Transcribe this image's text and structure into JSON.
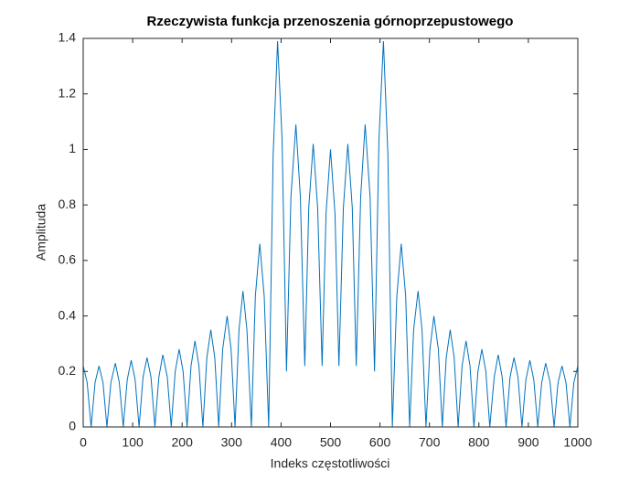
{
  "chart_data": {
    "type": "line",
    "title": "Rzeczywista funkcja przenoszenia górnoprzepustowego",
    "x_label": "Indeks częstotliwości",
    "y_label": "Amplituda",
    "x": [
      0,
      8,
      16,
      24,
      32,
      40,
      48,
      56,
      65,
      73,
      81,
      89,
      97,
      105,
      113,
      121,
      129,
      137,
      145,
      153,
      161,
      170,
      178,
      186,
      194,
      202,
      210,
      218,
      226,
      234,
      242,
      250,
      258,
      266,
      274,
      282,
      291,
      299,
      307,
      315,
      323,
      331,
      340,
      348,
      357,
      366,
      375,
      384,
      393,
      402,
      411,
      420,
      430,
      439,
      448,
      456,
      465,
      474,
      483,
      491,
      500,
      509,
      517,
      526,
      535,
      544,
      552,
      561,
      570,
      580,
      589,
      598,
      607,
      616,
      625,
      634,
      643,
      652,
      660,
      668,
      677,
      685,
      693,
      701,
      709,
      718,
      726,
      734,
      742,
      750,
      758,
      766,
      774,
      782,
      790,
      798,
      806,
      814,
      822,
      831,
      839,
      847,
      855,
      863,
      871,
      879,
      887,
      895,
      903,
      911,
      919,
      927,
      935,
      944,
      952,
      960,
      968,
      976,
      984,
      992,
      1000
    ],
    "series": [
      {
        "name": "Amplituda",
        "color": "#0072BD",
        "values": [
          0.22,
          0.16,
          0,
          0.16,
          0.22,
          0.16,
          0,
          0.16,
          0.23,
          0.16,
          0,
          0.17,
          0.24,
          0.17,
          0,
          0.18,
          0.25,
          0.18,
          0,
          0.18,
          0.26,
          0.18,
          0,
          0.2,
          0.28,
          0.2,
          0,
          0.22,
          0.31,
          0.22,
          0,
          0.25,
          0.35,
          0.25,
          0,
          0.28,
          0.4,
          0.28,
          0,
          0.35,
          0.49,
          0.35,
          0,
          0.47,
          0.66,
          0.47,
          0,
          0.98,
          1.39,
          1.04,
          0.2,
          0.83,
          1.09,
          0.83,
          0.22,
          0.79,
          1.02,
          0.79,
          0.22,
          0.77,
          1.0,
          0.77,
          0.22,
          0.79,
          1.02,
          0.79,
          0.22,
          0.83,
          1.09,
          0.83,
          0.2,
          1.04,
          1.39,
          0.98,
          0,
          0.47,
          0.66,
          0.47,
          0,
          0.35,
          0.49,
          0.35,
          0,
          0.28,
          0.4,
          0.28,
          0,
          0.25,
          0.35,
          0.25,
          0,
          0.22,
          0.31,
          0.22,
          0,
          0.2,
          0.28,
          0.2,
          0,
          0.18,
          0.26,
          0.18,
          0,
          0.18,
          0.25,
          0.18,
          0,
          0.17,
          0.24,
          0.17,
          0,
          0.16,
          0.23,
          0.16,
          0,
          0.16,
          0.22,
          0.16,
          0,
          0.16,
          0.22
        ]
      }
    ],
    "xlim": [
      0,
      1000
    ],
    "xticks": [
      0,
      100,
      200,
      300,
      400,
      500,
      600,
      700,
      800,
      900,
      1000
    ],
    "ylim": [
      0,
      1.4
    ],
    "yticks": [
      0,
      0.2,
      0.4,
      0.6,
      0.8,
      1,
      1.2,
      1.4
    ],
    "grid": false
  }
}
